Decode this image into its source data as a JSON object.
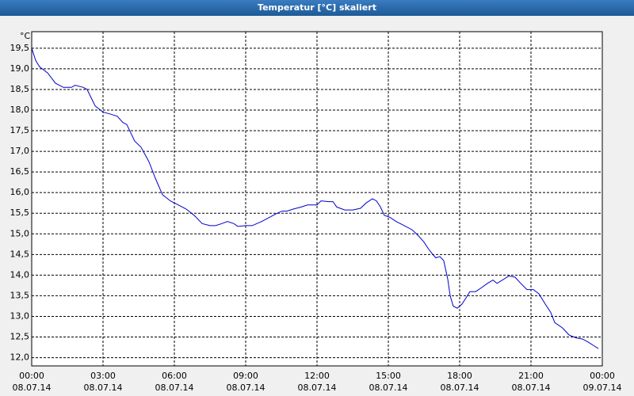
{
  "chart_data": {
    "type": "line",
    "title": "Temperatur [°C] skaliert",
    "y_unit": "°C",
    "color": "#0000cc",
    "grid": true,
    "xlim": [
      0,
      24
    ],
    "ylim": [
      11.8,
      19.9
    ],
    "xticks": [
      {
        "value": 0,
        "label": [
          "00:00",
          "08.07.14"
        ]
      },
      {
        "value": 3,
        "label": [
          "03:00",
          "08.07.14"
        ]
      },
      {
        "value": 6,
        "label": [
          "06:00",
          "08.07.14"
        ]
      },
      {
        "value": 9,
        "label": [
          "09:00",
          "08.07.14"
        ]
      },
      {
        "value": 12,
        "label": [
          "12:00",
          "08.07.14"
        ]
      },
      {
        "value": 15,
        "label": [
          "15:00",
          "08.07.14"
        ]
      },
      {
        "value": 18,
        "label": [
          "18:00",
          "08.07.14"
        ]
      },
      {
        "value": 21,
        "label": [
          "21:00",
          "08.07.14"
        ]
      },
      {
        "value": 24,
        "label": [
          "00:00",
          "09.07.14"
        ]
      }
    ],
    "yticks": [
      {
        "value": 12.0,
        "label": "12,0"
      },
      {
        "value": 12.5,
        "label": "12,5"
      },
      {
        "value": 13.0,
        "label": "13,0"
      },
      {
        "value": 13.5,
        "label": "13,5"
      },
      {
        "value": 14.0,
        "label": "14,0"
      },
      {
        "value": 14.5,
        "label": "14,5"
      },
      {
        "value": 15.0,
        "label": "15,0"
      },
      {
        "value": 15.5,
        "label": "15,5"
      },
      {
        "value": 16.0,
        "label": "16,0"
      },
      {
        "value": 16.5,
        "label": "16,5"
      },
      {
        "value": 17.0,
        "label": "17,0"
      },
      {
        "value": 17.5,
        "label": "17,5"
      },
      {
        "value": 18.0,
        "label": "18,0"
      },
      {
        "value": 18.5,
        "label": "18,5"
      },
      {
        "value": 19.0,
        "label": "19,0"
      },
      {
        "value": 19.5,
        "label": "19,5"
      }
    ],
    "x": [
      0,
      0.17,
      0.33,
      0.67,
      1,
      1.33,
      1.67,
      1.83,
      2.17,
      2.33,
      2.5,
      2.67,
      3,
      3.33,
      3.6,
      3.83,
      4,
      4.33,
      4.6,
      4.93,
      5.2,
      5.5,
      5.83,
      6.17,
      6.5,
      6.83,
      7.17,
      7.5,
      7.73,
      8,
      8.23,
      8.5,
      8.67,
      9,
      9.27,
      9.67,
      10,
      10.33,
      10.53,
      10.73,
      11,
      11.33,
      11.6,
      11.87,
      12,
      12.17,
      12.5,
      12.67,
      12.83,
      13.17,
      13.5,
      13.83,
      14.07,
      14.33,
      14.5,
      14.67,
      14.83,
      15.07,
      15.33,
      15.67,
      16,
      16.27,
      16.5,
      16.67,
      16.87,
      17,
      17.17,
      17.33,
      17.5,
      17.6,
      17.73,
      17.9,
      18.1,
      18.27,
      18.43,
      18.67,
      18.93,
      19.17,
      19.4,
      19.57,
      19.8,
      20.07,
      20.33,
      20.57,
      20.83,
      21.1,
      21.33,
      21.6,
      21.83,
      22,
      22.33,
      22.6,
      22.9,
      23.17,
      23.4,
      23.67,
      23.83
    ],
    "values": [
      19.5,
      19.2,
      19.05,
      18.9,
      18.65,
      18.55,
      18.55,
      18.6,
      18.55,
      18.5,
      18.3,
      18.1,
      17.95,
      17.9,
      17.85,
      17.7,
      17.65,
      17.25,
      17.1,
      16.75,
      16.35,
      15.95,
      15.8,
      15.7,
      15.6,
      15.45,
      15.25,
      15.2,
      15.2,
      15.25,
      15.3,
      15.25,
      15.18,
      15.2,
      15.2,
      15.3,
      15.4,
      15.5,
      15.55,
      15.55,
      15.6,
      15.65,
      15.7,
      15.7,
      15.7,
      15.8,
      15.78,
      15.78,
      15.65,
      15.58,
      15.58,
      15.62,
      15.75,
      15.85,
      15.8,
      15.65,
      15.45,
      15.4,
      15.3,
      15.2,
      15.1,
      14.95,
      14.8,
      14.65,
      14.5,
      14.42,
      14.45,
      14.35,
      13.9,
      13.5,
      13.25,
      13.2,
      13.3,
      13.45,
      13.6,
      13.6,
      13.7,
      13.8,
      13.88,
      13.8,
      13.88,
      13.98,
      13.95,
      13.8,
      13.65,
      13.65,
      13.55,
      13.3,
      13.1,
      12.85,
      12.72,
      12.55,
      12.48,
      12.45,
      12.38,
      12.28,
      12.22
    ]
  }
}
